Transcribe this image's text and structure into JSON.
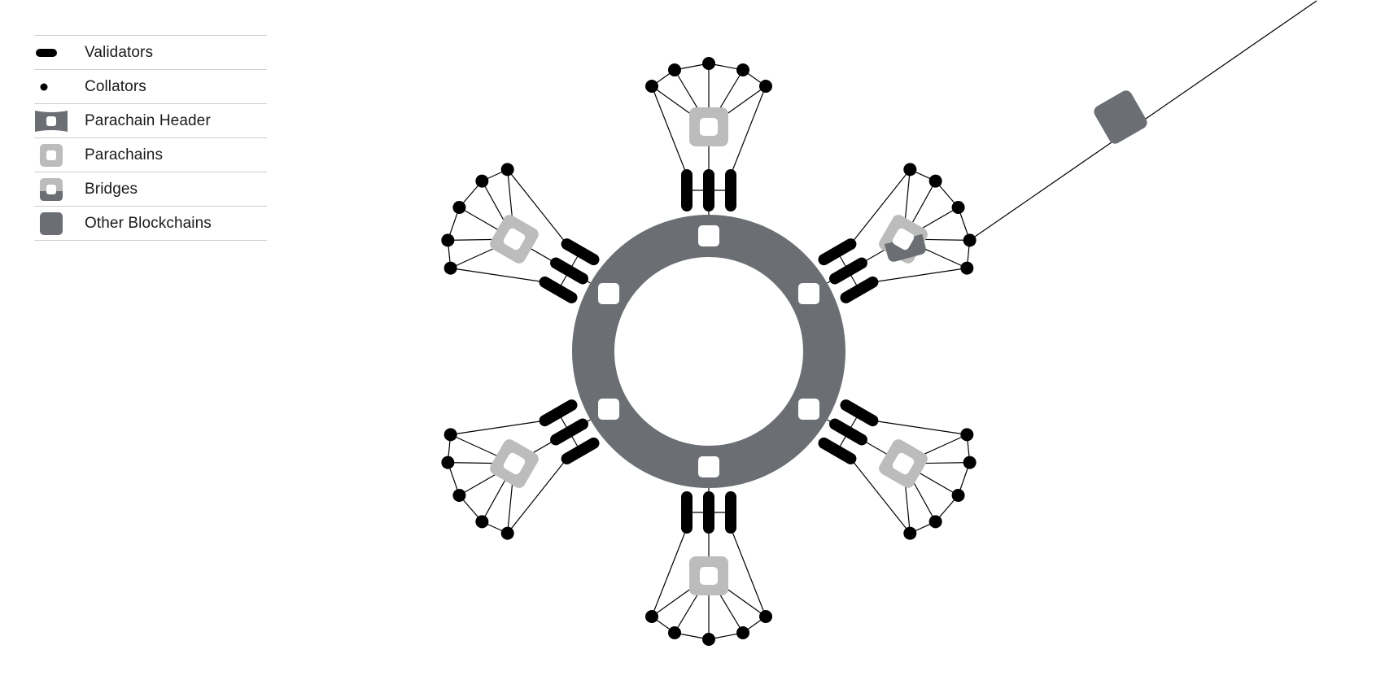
{
  "colors": {
    "ring": "#6b6f73",
    "parachain": "#bcbcbc",
    "dark": "#000000",
    "line": "#000000",
    "background": "#ffffff"
  },
  "legend": {
    "items": [
      {
        "key": "validators",
        "label": "Validators",
        "icon": "validator-icon"
      },
      {
        "key": "collators",
        "label": "Collators",
        "icon": "collator-icon"
      },
      {
        "key": "parachain_header",
        "label": "Parachain Header",
        "icon": "parachain-header-icon"
      },
      {
        "key": "parachains",
        "label": "Parachains",
        "icon": "parachain-icon"
      },
      {
        "key": "bridges",
        "label": "Bridges",
        "icon": "bridge-icon"
      },
      {
        "key": "other_blockchains",
        "label": "Other Blockchains",
        "icon": "other-blockchain-icon"
      }
    ]
  },
  "network": {
    "relay_chain_slots": 6,
    "spokes": [
      {
        "name": "parachain-top",
        "angle_deg": -90,
        "type": "parachain",
        "validators": 3,
        "collators": 5
      },
      {
        "name": "bridge-upper-right",
        "angle_deg": -30,
        "type": "bridge",
        "validators": 3,
        "collators": 5
      },
      {
        "name": "parachain-lower-right",
        "angle_deg": 30,
        "type": "parachain",
        "validators": 3,
        "collators": 5
      },
      {
        "name": "parachain-bottom",
        "angle_deg": 90,
        "type": "parachain",
        "validators": 3,
        "collators": 5
      },
      {
        "name": "parachain-lower-left",
        "angle_deg": 150,
        "type": "parachain",
        "validators": 3,
        "collators": 5
      },
      {
        "name": "parachain-upper-left",
        "angle_deg": 210,
        "type": "parachain",
        "validators": 3,
        "collators": 5
      }
    ],
    "external_chain": {
      "name": "other-blockchain",
      "connected_to": "bridge-upper-right"
    }
  }
}
